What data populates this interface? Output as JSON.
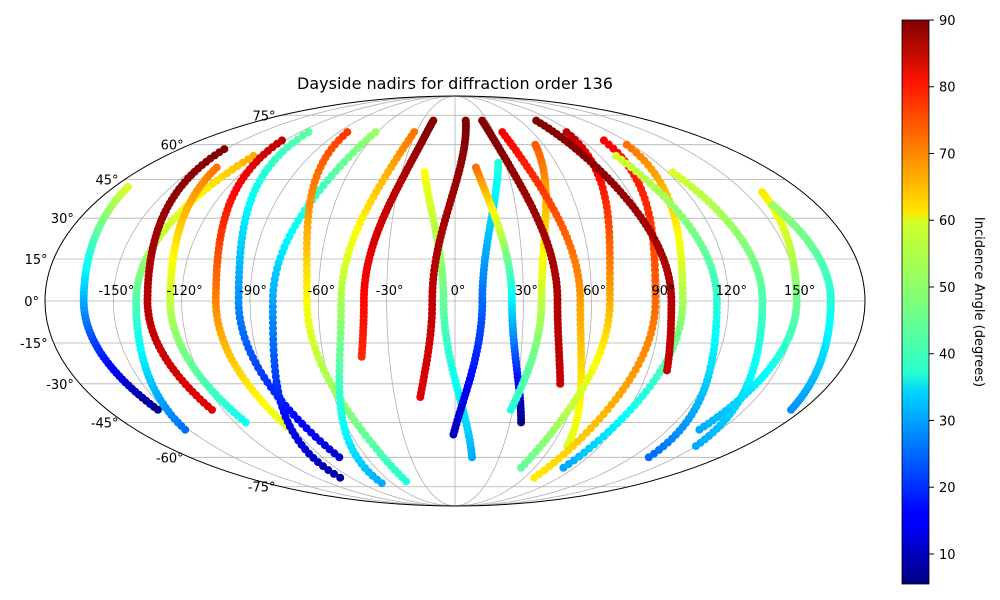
{
  "chart_data": {
    "type": "scatter",
    "title": "Dayside nadirs for diffraction order 136",
    "projection": "mollweide",
    "grid": true,
    "lon_tick_labels": [
      "-150°",
      "-120°",
      "-90°",
      "-60°",
      "-30°",
      "0°",
      "30°",
      "60°",
      "90°",
      "120°",
      "150°"
    ],
    "lon_ticks": [
      -150,
      -120,
      -90,
      -60,
      -30,
      0,
      30,
      60,
      90,
      120,
      150
    ],
    "lat_tick_labels": [
      "-75°",
      "-60°",
      "-45°",
      "-30°",
      "-15°",
      "0°",
      "15°",
      "30°",
      "45°",
      "60°",
      "75°"
    ],
    "lat_ticks": [
      -75,
      -60,
      -45,
      -30,
      -15,
      0,
      15,
      30,
      45,
      60,
      75
    ],
    "colorbar": {
      "label": "Incidence Angle (degrees)",
      "range": [
        5.5,
        90
      ],
      "tick_values": [
        10,
        20,
        30,
        40,
        50,
        60,
        70,
        80,
        90
      ],
      "tick_labels": [
        "10",
        "20",
        "30",
        "40",
        "50",
        "60",
        "70",
        "80",
        "90"
      ],
      "colormap": "jet"
    },
    "tracks": [
      {
        "lon_eq": -163,
        "lat_range": [
          -40,
          42
        ],
        "inc_range": [
          6,
          55
        ]
      },
      {
        "lon_eq": -140,
        "lat_range": [
          -48,
          55
        ],
        "inc_range": [
          25,
          65
        ]
      },
      {
        "lon_eq": -125,
        "lat_range": [
          -45,
          50
        ],
        "inc_range": [
          38,
          70
        ]
      },
      {
        "lon_eq": -105,
        "lat_range": [
          -50,
          62
        ],
        "inc_range": [
          55,
          85
        ]
      },
      {
        "lon_eq": -95,
        "lat_range": [
          -60,
          66
        ],
        "inc_range": [
          12,
          45
        ]
      },
      {
        "lon_eq": -80,
        "lat_range": [
          -70,
          66
        ],
        "inc_range": [
          8,
          50
        ]
      },
      {
        "lon_eq": -65,
        "lat_range": [
          -72,
          66
        ],
        "inc_range": [
          40,
          75
        ]
      },
      {
        "lon_eq": -50,
        "lat_range": [
          -73,
          66
        ],
        "inc_range": [
          30,
          70
        ]
      },
      {
        "lon_eq": -5,
        "lat_range": [
          -60,
          48
        ],
        "inc_range": [
          30,
          58
        ]
      },
      {
        "lon_eq": 12,
        "lat_range": [
          -50,
          52
        ],
        "inc_range": [
          10,
          40
        ]
      },
      {
        "lon_eq": 25,
        "lat_range": [
          -45,
          50
        ],
        "inc_range": [
          5,
          70
        ]
      },
      {
        "lon_eq": 38,
        "lat_range": [
          -40,
          60
        ],
        "inc_range": [
          40,
          72
        ]
      },
      {
        "lon_eq": 55,
        "lat_range": [
          -55,
          66
        ],
        "inc_range": [
          55,
          80
        ]
      },
      {
        "lon_eq": 68,
        "lat_range": [
          -65,
          66
        ],
        "inc_range": [
          45,
          85
        ]
      },
      {
        "lon_eq": 88,
        "lat_range": [
          -70,
          62
        ],
        "inc_range": [
          60,
          80
        ]
      },
      {
        "lon_eq": 100,
        "lat_range": [
          -65,
          60
        ],
        "inc_range": [
          30,
          70
        ]
      },
      {
        "lon_eq": 115,
        "lat_range": [
          -60,
          55
        ],
        "inc_range": [
          25,
          55
        ]
      },
      {
        "lon_eq": 135,
        "lat_range": [
          -55,
          48
        ],
        "inc_range": [
          30,
          55
        ]
      },
      {
        "lon_eq": 150,
        "lat_range": [
          -48,
          40
        ],
        "inc_range": [
          30,
          60
        ]
      },
      {
        "lon_eq": 165,
        "lat_range": [
          -40,
          35
        ],
        "inc_range": [
          28,
          50
        ]
      },
      {
        "lon_eq": -40,
        "lat_range": [
          -20,
          72
        ],
        "inc_range": [
          76,
          90
        ]
      },
      {
        "lon_eq": -10,
        "lat_range": [
          -35,
          72
        ],
        "inc_range": [
          82,
          90
        ]
      },
      {
        "lon_eq": 45,
        "lat_range": [
          -30,
          72
        ],
        "inc_range": [
          84,
          90
        ]
      },
      {
        "lon_eq": -135,
        "lat_range": [
          -40,
          58
        ],
        "inc_range": [
          82,
          90
        ]
      },
      {
        "lon_eq": 95,
        "lat_range": [
          -25,
          72
        ],
        "inc_range": [
          84,
          90
        ]
      }
    ]
  }
}
